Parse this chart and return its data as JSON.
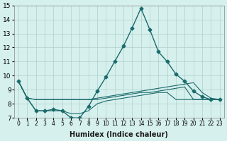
{
  "xlabel": "Humidex (Indice chaleur)",
  "x": [
    0,
    1,
    2,
    3,
    4,
    5,
    6,
    7,
    8,
    9,
    10,
    11,
    12,
    13,
    14,
    15,
    16,
    17,
    18,
    19,
    20,
    21,
    22,
    23
  ],
  "line1": [
    9.6,
    8.4,
    7.5,
    7.5,
    7.6,
    7.5,
    7.0,
    7.0,
    7.8,
    8.9,
    9.9,
    11.0,
    12.1,
    13.4,
    14.8,
    13.3,
    11.7,
    11.0,
    10.1,
    9.6,
    8.9,
    8.5,
    8.3,
    8.3
  ],
  "line2": [
    9.6,
    8.4,
    8.3,
    8.3,
    8.3,
    8.3,
    8.3,
    8.3,
    8.3,
    8.4,
    8.5,
    8.6,
    8.7,
    8.8,
    8.9,
    9.0,
    9.1,
    9.2,
    9.3,
    9.4,
    9.5,
    8.8,
    8.4,
    8.3
  ],
  "line3": [
    9.6,
    8.4,
    8.3,
    8.3,
    8.3,
    8.3,
    8.3,
    8.3,
    8.3,
    8.3,
    8.4,
    8.5,
    8.6,
    8.7,
    8.8,
    8.8,
    8.9,
    9.0,
    9.1,
    9.2,
    8.3,
    8.3,
    8.3,
    8.3
  ],
  "line4": [
    9.6,
    8.4,
    7.5,
    7.5,
    7.5,
    7.5,
    7.3,
    7.3,
    7.5,
    8.0,
    8.2,
    8.3,
    8.4,
    8.5,
    8.6,
    8.7,
    8.8,
    8.8,
    8.3,
    8.3,
    8.3,
    8.3,
    8.3,
    8.3
  ],
  "bg_color": "#d6f0ee",
  "grid_color": "#b0cfc9",
  "line_color": "#1a6b6b",
  "xlim": [
    -0.5,
    23.5
  ],
  "ylim": [
    7,
    15
  ],
  "yticks": [
    7,
    8,
    9,
    10,
    11,
    12,
    13,
    14,
    15
  ],
  "xtick_labels": [
    "0",
    "1",
    "2",
    "3",
    "4",
    "5",
    "6",
    "7",
    "8",
    "9",
    "10",
    "11",
    "12",
    "13",
    "14",
    "15",
    "16",
    "17",
    "18",
    "19",
    "20",
    "21",
    "22",
    "23"
  ]
}
